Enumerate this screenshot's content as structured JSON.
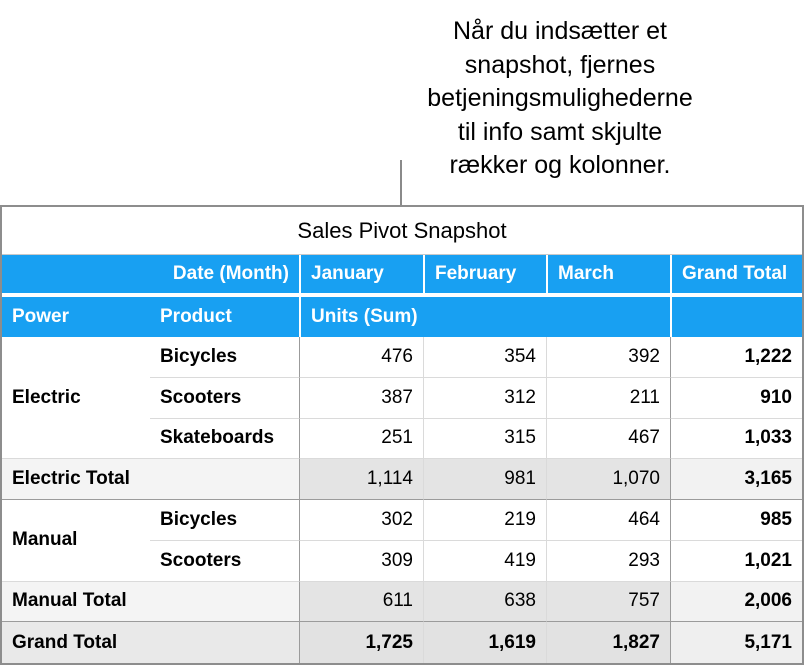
{
  "callout": {
    "lines": [
      "Når du indsætter et",
      "snapshot, fjernes",
      "betjeningsmulighederne",
      "til info samt skjulte",
      "rækker og kolonner."
    ]
  },
  "table": {
    "title": "Sales Pivot Snapshot",
    "header1": {
      "date_label": "Date (Month)",
      "months": [
        "January",
        "February",
        "March"
      ],
      "grand_total_label": "Grand Total"
    },
    "header2": {
      "power_label": "Power",
      "product_label": "Product",
      "units_label": "Units (Sum)"
    },
    "body": {
      "rows": [
        {
          "group": "Electric",
          "product": "Bicycles",
          "jan": "476",
          "feb": "354",
          "mar": "392",
          "total": "1,222"
        },
        {
          "product": "Scooters",
          "jan": "387",
          "feb": "312",
          "mar": "211",
          "total": "910"
        },
        {
          "product": "Skateboards",
          "jan": "251",
          "feb": "315",
          "mar": "467",
          "total": "1,033"
        },
        {
          "label": "Electric Total",
          "jan": "1,114",
          "feb": "981",
          "mar": "1,070",
          "total": "3,165"
        },
        {
          "group": "Manual",
          "product": "Bicycles",
          "jan": "302",
          "feb": "219",
          "mar": "464",
          "total": "985"
        },
        {
          "product": "Scooters",
          "jan": "309",
          "feb": "419",
          "mar": "293",
          "total": "1,021"
        },
        {
          "label": "Manual Total",
          "jan": "611",
          "feb": "638",
          "mar": "757",
          "total": "2,006"
        },
        {
          "label": "Grand Total",
          "jan": "1,725",
          "feb": "1,619",
          "mar": "1,827",
          "total": "5,171"
        }
      ]
    }
  },
  "colors": {
    "header_blue": "#18a0f2",
    "header_text": "#ffffff",
    "outer_border": "#8d8d8d",
    "grid_line_medium": "#9b9b9b",
    "grid_line_light": "#dadada",
    "subtotal_label_bg": "#f4f4f4",
    "subtotal_data_bg": "#e4e4e4",
    "subtotal_total_bg": "#f2f2f2",
    "grand_label_bg": "#e9e9e9",
    "grand_data_bg": "#e2e2e2",
    "grand_total_bg": "#efefef",
    "connector_line": "#8a8a8a"
  }
}
